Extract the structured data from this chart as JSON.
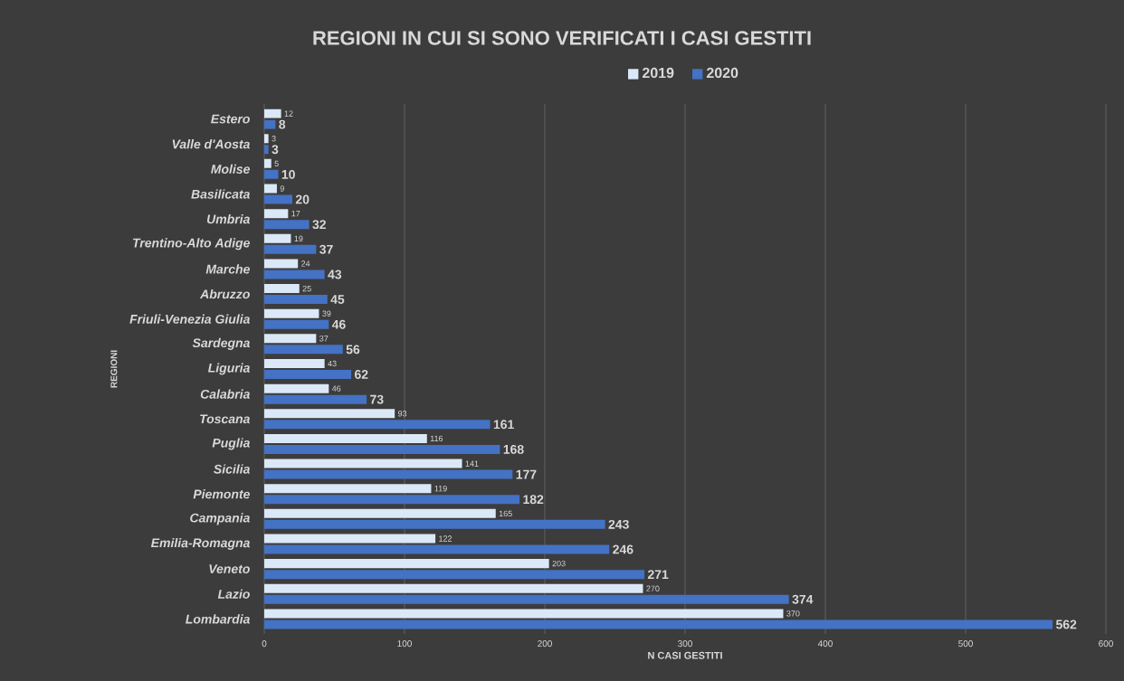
{
  "chart_data": {
    "type": "bar",
    "orientation": "horizontal",
    "title": "REGIONI IN CUI SI SONO VERIFICATI I CASI GESTITI",
    "xlabel": "N CASI GESTITI",
    "ylabel": "REGIONI",
    "categories": [
      "Estero",
      "Valle d'Aosta",
      "Molise",
      "Basilicata",
      "Umbria",
      "Trentino-Alto Adige",
      "Marche",
      "Abruzzo",
      "Friuli-Venezia Giulia",
      "Sardegna",
      "Liguria",
      "Calabria",
      "Toscana",
      "Puglia",
      "Sicilia",
      "Piemonte",
      "Campania",
      "Emilia-Romagna",
      "Veneto",
      "Lazio",
      "Lombardia"
    ],
    "series": [
      {
        "name": "2019",
        "color": "#dbe8f7",
        "values": [
          12,
          3,
          5,
          9,
          17,
          19,
          24,
          25,
          39,
          37,
          43,
          46,
          93,
          116,
          141,
          119,
          165,
          122,
          203,
          270,
          370
        ]
      },
      {
        "name": "2020",
        "color": "#4472c4",
        "values": [
          8,
          3,
          10,
          20,
          32,
          37,
          43,
          45,
          46,
          56,
          62,
          73,
          161,
          168,
          177,
          182,
          243,
          246,
          271,
          374,
          562
        ]
      }
    ],
    "xlim": [
      0,
      600
    ],
    "xticks": [
      0,
      100,
      200,
      300,
      400,
      500,
      600
    ],
    "grid": "x",
    "legend": "top",
    "data_labels": true
  }
}
